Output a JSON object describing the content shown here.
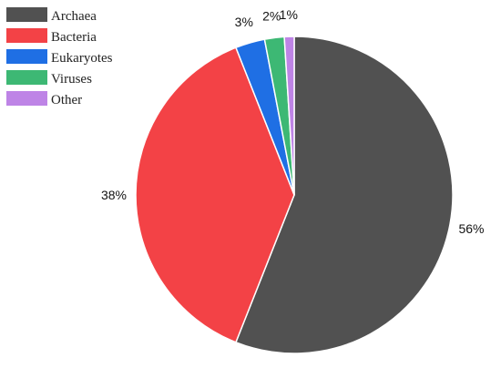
{
  "chart_data": {
    "type": "pie",
    "title": "",
    "legend_position": "top-left",
    "slices": [
      {
        "name": "Archaea",
        "value": 56,
        "label": "56%",
        "color": "#515151"
      },
      {
        "name": "Bacteria",
        "value": 38,
        "label": "38%",
        "color": "#F34246"
      },
      {
        "name": "Eukaryotes",
        "value": 3,
        "label": "3%",
        "color": "#1F6FE4"
      },
      {
        "name": "Viruses",
        "value": 2,
        "label": "2%",
        "color": "#3DB874"
      },
      {
        "name": "Other",
        "value": 1,
        "label": "1%",
        "color": "#BE84E6"
      }
    ]
  }
}
